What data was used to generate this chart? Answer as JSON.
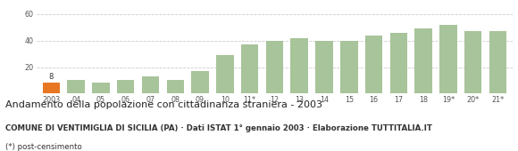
{
  "categories": [
    "2003",
    "04",
    "05",
    "06",
    "07",
    "08",
    "09",
    "10",
    "11*",
    "12",
    "13",
    "14",
    "15",
    "16",
    "17",
    "18",
    "19*",
    "20*",
    "21*"
  ],
  "values": [
    8,
    10,
    8,
    10,
    13,
    10,
    17,
    29,
    37,
    40,
    42,
    40,
    40,
    44,
    46,
    49,
    52,
    47,
    47
  ],
  "bar_color_default": "#a8c49a",
  "bar_color_highlight": "#e87722",
  "highlight_index": 0,
  "label_2003": "8",
  "ylim": [
    0,
    65
  ],
  "yticks": [
    20,
    40,
    60
  ],
  "title": "Andamento della popolazione con cittadinanza straniera - 2003",
  "subtitle": "COMUNE DI VENTIMIGLIA DI SICILIA (PA) · Dati ISTAT 1° gennaio 2003 · Elaborazione TUTTITALIA.IT",
  "footnote": "(*) post-censimento",
  "title_fontsize": 8.0,
  "subtitle_fontsize": 6.2,
  "footnote_fontsize": 6.2,
  "tick_fontsize": 5.8,
  "background_color": "#ffffff",
  "grid_color": "#cccccc"
}
